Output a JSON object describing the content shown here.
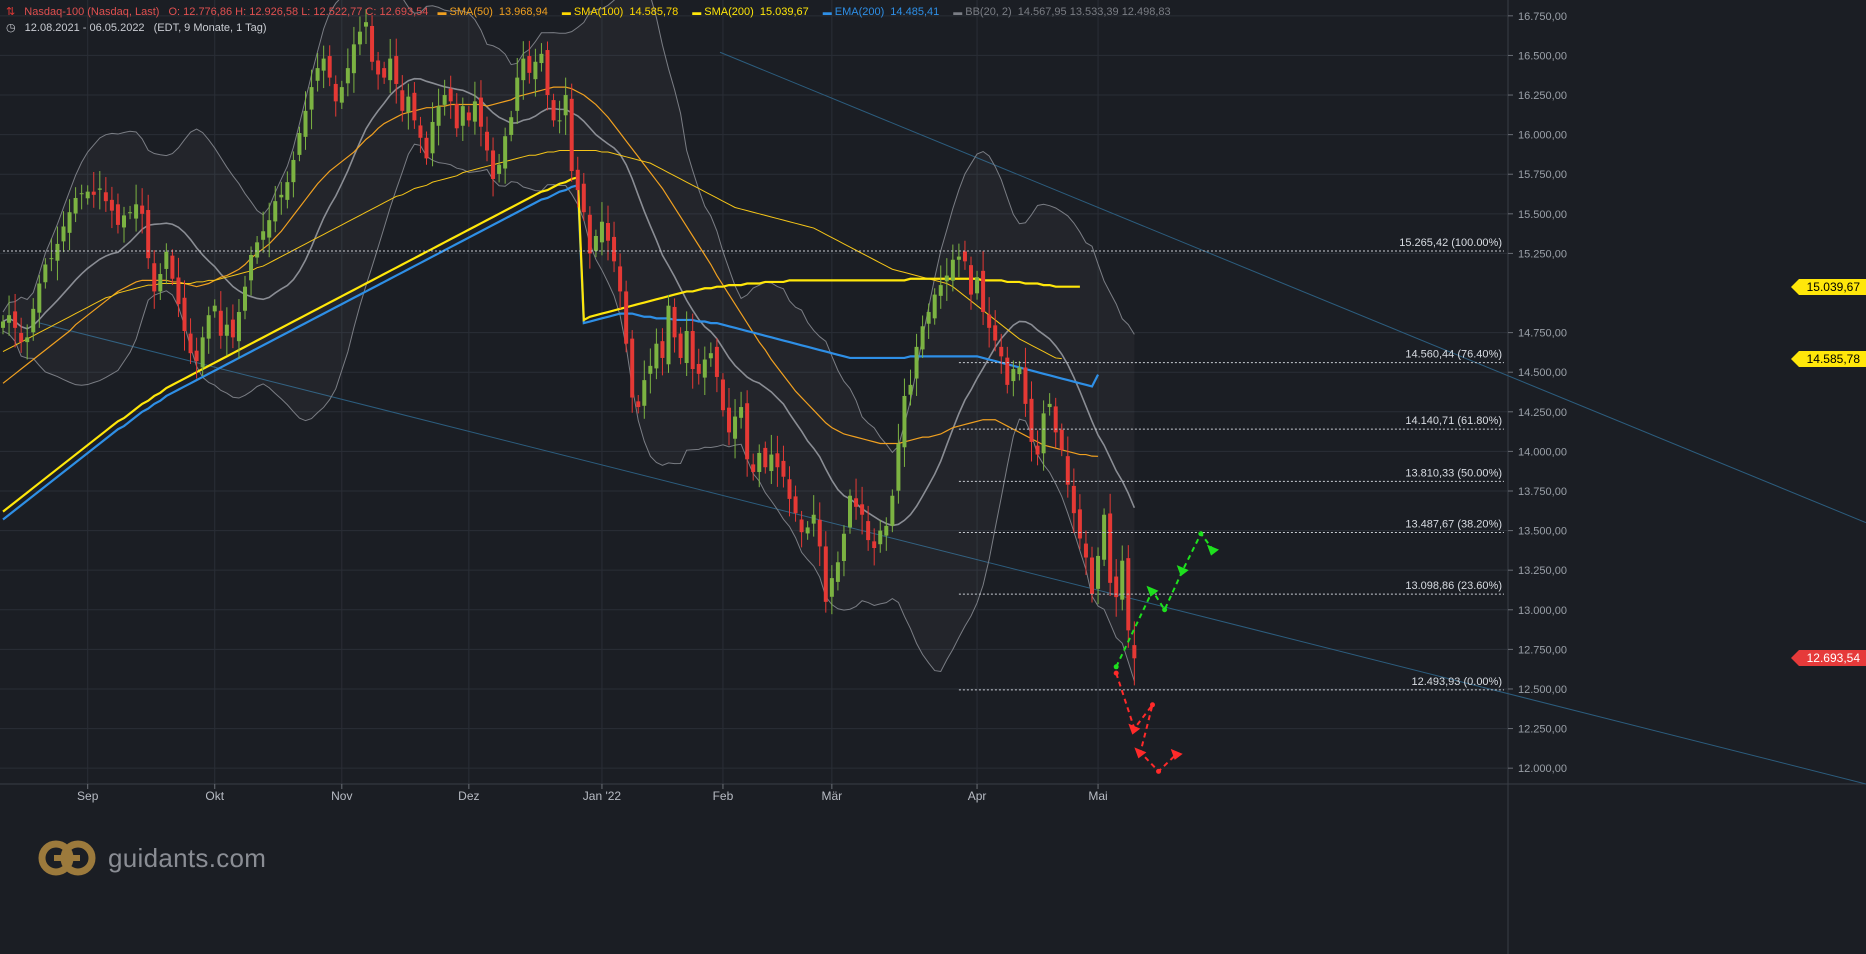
{
  "header": {
    "line1": {
      "instrument": "Nasdaq-100 (Nasdaq, Last)",
      "ohlc": "O: 12.776,86  H: 12.926,58  L: 12.522,77  C: 12.693,54",
      "indicators": [
        {
          "label": "SMA(50)",
          "value": "13.968,94",
          "color": "#f0a020"
        },
        {
          "label": "SMA(100)",
          "value": "14.585,78",
          "color": "#ffd800"
        },
        {
          "label": "SMA(200)",
          "value": "15.039,67",
          "color": "#ffe70a"
        },
        {
          "label": "EMA(200)",
          "value": "14.485,41",
          "color": "#2e8fe6"
        },
        {
          "label": "BB(20, 2)",
          "value": "14.567,95  13.533,39  12.498,83",
          "color": "#888888"
        }
      ]
    },
    "line2": {
      "range": "12.08.2021 - 06.05.2022",
      "info": "(EDT, 9 Monate, 1 Tag)"
    }
  },
  "price_tags": [
    {
      "value": 15039.67,
      "label": "15.039,67",
      "style": "yellow"
    },
    {
      "value": 14585.78,
      "label": "14.585,78",
      "style": "yellow"
    },
    {
      "value": 12693.54,
      "label": "12.693,54",
      "style": "red"
    }
  ],
  "logo": {
    "text": "guidants.com"
  },
  "colors": {
    "up": "#7cb342",
    "down": "#e53935",
    "sma50": "#f0a020",
    "sma100": "#f5c518",
    "sma200": "#ffe70a",
    "ema200": "#2e8fe6",
    "bb": "#7a7d84",
    "trend": "#2c5d7e"
  },
  "chart_data": {
    "type": "candlestick",
    "y_range": [
      11900,
      16850
    ],
    "y_ticks": [
      {
        "v": 16750,
        "label": "16.750,00"
      },
      {
        "v": 16500,
        "label": "16.500,00"
      },
      {
        "v": 16250,
        "label": "16.250,00"
      },
      {
        "v": 16000,
        "label": "16.000,00"
      },
      {
        "v": 15750,
        "label": "15.750,00"
      },
      {
        "v": 15500,
        "label": "15.500,00"
      },
      {
        "v": 15250,
        "label": "15.250,00"
      },
      {
        "v": 14750,
        "label": "14.750,00"
      },
      {
        "v": 14500,
        "label": "14.500,00"
      },
      {
        "v": 14250,
        "label": "14.250,00"
      },
      {
        "v": 14000,
        "label": "14.000,00"
      },
      {
        "v": 13750,
        "label": "13.750,00"
      },
      {
        "v": 13500,
        "label": "13.500,00"
      },
      {
        "v": 13250,
        "label": "13.250,00"
      },
      {
        "v": 13000,
        "label": "13.000,00"
      },
      {
        "v": 12750,
        "label": "12.750,00"
      },
      {
        "v": 12500,
        "label": "12.500,00"
      },
      {
        "v": 12250,
        "label": "12.250,00"
      },
      {
        "v": 12000,
        "label": "12.000,00"
      }
    ],
    "x_labels": [
      {
        "i": 14,
        "label": "Sep"
      },
      {
        "i": 35,
        "label": "Okt"
      },
      {
        "i": 56,
        "label": "Nov"
      },
      {
        "i": 77,
        "label": "Dez"
      },
      {
        "i": 99,
        "label": "Jan '22"
      },
      {
        "i": 119,
        "label": "Feb"
      },
      {
        "i": 137,
        "label": "Mär"
      },
      {
        "i": 161,
        "label": "Apr"
      },
      {
        "i": 181,
        "label": "Mai"
      }
    ],
    "fib_levels": [
      {
        "v": 15265.42,
        "label": "15.265,42 (100.00%)",
        "from_i": 0
      },
      {
        "v": 14560.44,
        "label": "14.560,44 (76.40%)",
        "from_i": 158
      },
      {
        "v": 14140.71,
        "label": "14.140,71 (61.80%)",
        "from_i": 158
      },
      {
        "v": 13810.33,
        "label": "13.810,33 (50.00%)",
        "from_i": 158
      },
      {
        "v": 13487.67,
        "label": "13.487,67 (38.20%)",
        "from_i": 158
      },
      {
        "v": 13098.86,
        "label": "13.098,86 (23.60%)",
        "from_i": 158
      },
      {
        "v": 12493.93,
        "label": "12.493,93 (0.00%)",
        "from_i": 158
      }
    ],
    "closes": [
      14820,
      14860,
      14780,
      14690,
      14720,
      14900,
      15060,
      15180,
      15220,
      15310,
      15420,
      15510,
      15600,
      15630,
      15640,
      15620,
      15660,
      15580,
      15520,
      15430,
      15490,
      15510,
      15560,
      15500,
      15220,
      15010,
      15120,
      15260,
      15090,
      14930,
      14760,
      14620,
      14570,
      14720,
      14860,
      14920,
      14730,
      14800,
      14720,
      14880,
      15040,
      15240,
      15320,
      15390,
      15460,
      15580,
      15620,
      15700,
      15840,
      16010,
      16150,
      16300,
      16420,
      16480,
      16360,
      16210,
      16300,
      16420,
      16570,
      16650,
      16710,
      16460,
      16380,
      16360,
      16480,
      16320,
      16150,
      16240,
      16090,
      15980,
      15850,
      16080,
      16180,
      16250,
      16210,
      16040,
      16180,
      16090,
      16210,
      16050,
      15900,
      15720,
      15810,
      15990,
      16110,
      16360,
      16480,
      16390,
      16460,
      16510,
      16250,
      16090,
      16090,
      16250,
      15770,
      15650,
      15510,
      15250,
      15360,
      15450,
      15330,
      15200,
      15010,
      14680,
      14340,
      14280,
      14450,
      14540,
      14680,
      14590,
      14920,
      14720,
      14590,
      14760,
      14520,
      14490,
      14580,
      14620,
      14470,
      14260,
      14120,
      14220,
      14280,
      13950,
      13870,
      13990,
      13900,
      13980,
      13900,
      13840,
      13700,
      13610,
      13490,
      13520,
      13600,
      13400,
      13050,
      13200,
      13300,
      13480,
      13720,
      13650,
      13600,
      13440,
      13390,
      13500,
      13530,
      13720,
      14050,
      14350,
      14420,
      14660,
      14790,
      14880,
      14990,
      15050,
      15110,
      15210,
      15230,
      15200,
      14990,
      15100,
      14880,
      14780,
      14700,
      14600,
      14420,
      14520,
      14530,
      14300,
      14060,
      13980,
      14240,
      14300,
      14120,
      14010,
      13790,
      13610,
      13450,
      13330,
      13100,
      13340,
      13600,
      13170,
      13080,
      13310,
      12870,
      12693.54
    ],
    "sma50": [
      14430,
      14460,
      14490,
      14520,
      14550,
      14580,
      14610,
      14640,
      14670,
      14700,
      14730,
      14760,
      14800,
      14830,
      14860,
      14890,
      14920,
      14950,
      14980,
      15010,
      15030,
      15050,
      15070,
      15080,
      15080,
      15080,
      15080,
      15080,
      15070,
      15070,
      15060,
      15050,
      15040,
      15050,
      15060,
      15080,
      15100,
      15110,
      15130,
      15150,
      15180,
      15220,
      15250,
      15280,
      15310,
      15350,
      15390,
      15440,
      15490,
      15540,
      15590,
      15640,
      15690,
      15730,
      15770,
      15800,
      15830,
      15860,
      15890,
      15930,
      15970,
      16000,
      16040,
      16070,
      16090,
      16110,
      16130,
      16140,
      16150,
      16160,
      16170,
      16170,
      16180,
      16180,
      16190,
      16190,
      16190,
      16190,
      16190,
      16190,
      16180,
      16190,
      16200,
      16210,
      16220,
      16240,
      16250,
      16260,
      16270,
      16280,
      16290,
      16300,
      16300,
      16300,
      16290,
      16270,
      16250,
      16220,
      16190,
      16150,
      16110,
      16060,
      16010,
      15960,
      15910,
      15860,
      15810,
      15760,
      15710,
      15660,
      15600,
      15540,
      15480,
      15420,
      15360,
      15300,
      15240,
      15180,
      15110,
      15050,
      14990,
      14930,
      14870,
      14810,
      14750,
      14690,
      14640,
      14580,
      14530,
      14480,
      14430,
      14380,
      14340,
      14300,
      14260,
      14220,
      14180,
      14150,
      14130,
      14110,
      14100,
      14090,
      14080,
      14070,
      14060,
      14050,
      14050,
      14050,
      14050,
      14060,
      14070,
      14080,
      14090,
      14090,
      14100,
      14110,
      14130,
      14150,
      14160,
      14170,
      14180,
      14190,
      14200,
      14200,
      14200,
      14180,
      14160,
      14140,
      14120,
      14100,
      14080,
      14060,
      14040,
      14030,
      14020,
      14010,
      14000,
      13990,
      13980,
      13980,
      13970,
      13969
    ],
    "sma100": [
      14630,
      14650,
      14670,
      14690,
      14710,
      14730,
      14750,
      14770,
      14790,
      14810,
      14830,
      14850,
      14870,
      14890,
      14910,
      14930,
      14950,
      14970,
      14980,
      15000,
      15010,
      15020,
      15030,
      15040,
      15050,
      15050,
      15060,
      15060,
      15060,
      15060,
      15060,
      15060,
      15070,
      15070,
      15080,
      15080,
      15090,
      15100,
      15110,
      15120,
      15130,
      15140,
      15160,
      15170,
      15190,
      15210,
      15230,
      15250,
      15270,
      15290,
      15310,
      15330,
      15350,
      15370,
      15390,
      15410,
      15430,
      15450,
      15470,
      15490,
      15510,
      15530,
      15550,
      15570,
      15590,
      15610,
      15620,
      15640,
      15660,
      15670,
      15680,
      15700,
      15710,
      15720,
      15730,
      15740,
      15760,
      15770,
      15780,
      15790,
      15800,
      15810,
      15820,
      15830,
      15840,
      15850,
      15860,
      15870,
      15870,
      15880,
      15890,
      15890,
      15900,
      15900,
      15900,
      15900,
      15900,
      15900,
      15900,
      15890,
      15890,
      15880,
      15870,
      15860,
      15850,
      15840,
      15830,
      15820,
      15800,
      15780,
      15760,
      15740,
      15720,
      15700,
      15680,
      15660,
      15640,
      15620,
      15600,
      15580,
      15560,
      15540,
      15530,
      15520,
      15510,
      15500,
      15490,
      15480,
      15470,
      15460,
      15450,
      15440,
      15430,
      15420,
      15410,
      15390,
      15370,
      15350,
      15330,
      15310,
      15290,
      15270,
      15250,
      15230,
      15210,
      15190,
      15170,
      15150,
      15140,
      15130,
      15120,
      15110,
      15100,
      15090,
      15080,
      15070,
      15060,
      15040,
      15010,
      14980,
      14950,
      14920,
      14890,
      14860,
      14830,
      14800,
      14770,
      14740,
      14710,
      14690,
      14670,
      14650,
      14630,
      14610,
      14590,
      14586
    ],
    "sma200": [
      13620,
      13650,
      13680,
      13710,
      13740,
      13770,
      13800,
      13830,
      13860,
      13890,
      13920,
      13950,
      13980,
      14010,
      14040,
      14070,
      14100,
      14130,
      14160,
      14190,
      14210,
      14240,
      14270,
      14300,
      14320,
      14350,
      14370,
      14400,
      14420,
      14440,
      14460,
      14480,
      14500,
      14520,
      14540,
      14560,
      14580,
      14600,
      14620,
      14640,
      14660,
      14680,
      14700,
      14720,
      14740,
      14760,
      14780,
      14800,
      14820,
      14840,
      14860,
      14880,
      14900,
      14920,
      14940,
      14960,
      14980,
      15000,
      15020,
      15040,
      15060,
      15080,
      15100,
      15120,
      15140,
      15160,
      15180,
      15200,
      15220,
      15240,
      15260,
      15280,
      15300,
      15320,
      15340,
      15360,
      15380,
      15400,
      15420,
      15440,
      15460,
      15480,
      15500,
      15520,
      15540,
      15560,
      15580,
      15600,
      15620,
      15640,
      15650,
      15670,
      15690,
      15700,
      15720,
      15730,
      14830,
      14850,
      14860,
      14870,
      14880,
      14890,
      14900,
      14910,
      14920,
      14930,
      14940,
      14950,
      14960,
      14970,
      14980,
      14990,
      15000,
      15010,
      15010,
      15020,
      15030,
      15030,
      15040,
      15040,
      15050,
      15050,
      15050,
      15060,
      15060,
      15060,
      15070,
      15070,
      15070,
      15070,
      15080,
      15080,
      15080,
      15080,
      15080,
      15080,
      15080,
      15080,
      15080,
      15080,
      15080,
      15080,
      15080,
      15080,
      15080,
      15080,
      15080,
      15080,
      15080,
      15080,
      15090,
      15090,
      15090,
      15090,
      15090,
      15090,
      15090,
      15090,
      15090,
      15090,
      15090,
      15090,
      15080,
      15080,
      15080,
      15080,
      15070,
      15070,
      15070,
      15060,
      15060,
      15060,
      15050,
      15050,
      15040,
      15040,
      15040,
      15040,
      15040
    ],
    "ema200": [
      13570,
      13600,
      13630,
      13660,
      13690,
      13720,
      13750,
      13780,
      13810,
      13840,
      13870,
      13900,
      13930,
      13960,
      13990,
      14020,
      14050,
      14080,
      14110,
      14140,
      14160,
      14190,
      14220,
      14250,
      14270,
      14300,
      14320,
      14350,
      14370,
      14390,
      14410,
      14430,
      14450,
      14470,
      14490,
      14510,
      14530,
      14550,
      14570,
      14590,
      14610,
      14630,
      14650,
      14670,
      14690,
      14710,
      14730,
      14750,
      14770,
      14790,
      14810,
      14830,
      14850,
      14870,
      14890,
      14910,
      14930,
      14950,
      14970,
      14990,
      15010,
      15030,
      15050,
      15070,
      15090,
      15110,
      15130,
      15150,
      15170,
      15190,
      15210,
      15230,
      15250,
      15270,
      15290,
      15310,
      15330,
      15350,
      15370,
      15390,
      15410,
      15430,
      15450,
      15470,
      15490,
      15510,
      15530,
      15550,
      15570,
      15590,
      15600,
      15620,
      15640,
      15650,
      15670,
      15680,
      14810,
      14820,
      14830,
      14840,
      14850,
      14860,
      14870,
      14870,
      14870,
      14860,
      14850,
      14850,
      14840,
      14840,
      14840,
      14830,
      14830,
      14830,
      14830,
      14820,
      14820,
      14810,
      14810,
      14800,
      14790,
      14780,
      14770,
      14760,
      14750,
      14740,
      14730,
      14720,
      14710,
      14700,
      14690,
      14680,
      14670,
      14660,
      14650,
      14640,
      14630,
      14620,
      14610,
      14600,
      14590,
      14590,
      14590,
      14590,
      14590,
      14590,
      14590,
      14590,
      14590,
      14590,
      14600,
      14600,
      14600,
      14600,
      14600,
      14600,
      14600,
      14600,
      14600,
      14600,
      14600,
      14600,
      14590,
      14580,
      14570,
      14560,
      14550,
      14540,
      14530,
      14520,
      14510,
      14500,
      14490,
      14480,
      14470,
      14460,
      14450,
      14440,
      14430,
      14420,
      14410,
      14485
    ],
    "projections": {
      "bull": [
        [
          184,
          12640
        ],
        [
          190,
          13120
        ],
        [
          192,
          13000
        ],
        [
          195,
          13250
        ],
        [
          198,
          13480
        ],
        [
          200,
          13380
        ]
      ],
      "bear": [
        [
          184,
          12600
        ],
        [
          187,
          12250
        ],
        [
          190,
          12400
        ],
        [
          188,
          12100
        ],
        [
          191,
          11980
        ],
        [
          194,
          12090
        ]
      ]
    }
  }
}
